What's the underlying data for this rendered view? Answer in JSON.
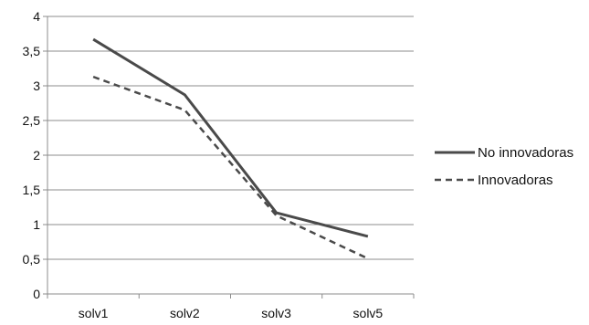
{
  "chart_data": {
    "type": "line",
    "title": "",
    "xlabel": "",
    "ylabel": "",
    "categories": [
      "solv1",
      "solv2",
      "solv3",
      "solv5"
    ],
    "ylim": [
      0,
      4
    ],
    "yticks": [
      "0",
      "0,5",
      "1",
      "1,5",
      "2",
      "2,5",
      "3",
      "3,5",
      "4"
    ],
    "grid": true,
    "legend_position": "right",
    "series": [
      {
        "name": "No innovadoras",
        "values": [
          3.67,
          2.87,
          1.17,
          0.83
        ],
        "style": "solid",
        "color": "#4a4a4a"
      },
      {
        "name": "Innovadoras",
        "values": [
          3.13,
          2.65,
          1.13,
          0.51
        ],
        "style": "dashed",
        "color": "#4a4a4a"
      }
    ]
  }
}
